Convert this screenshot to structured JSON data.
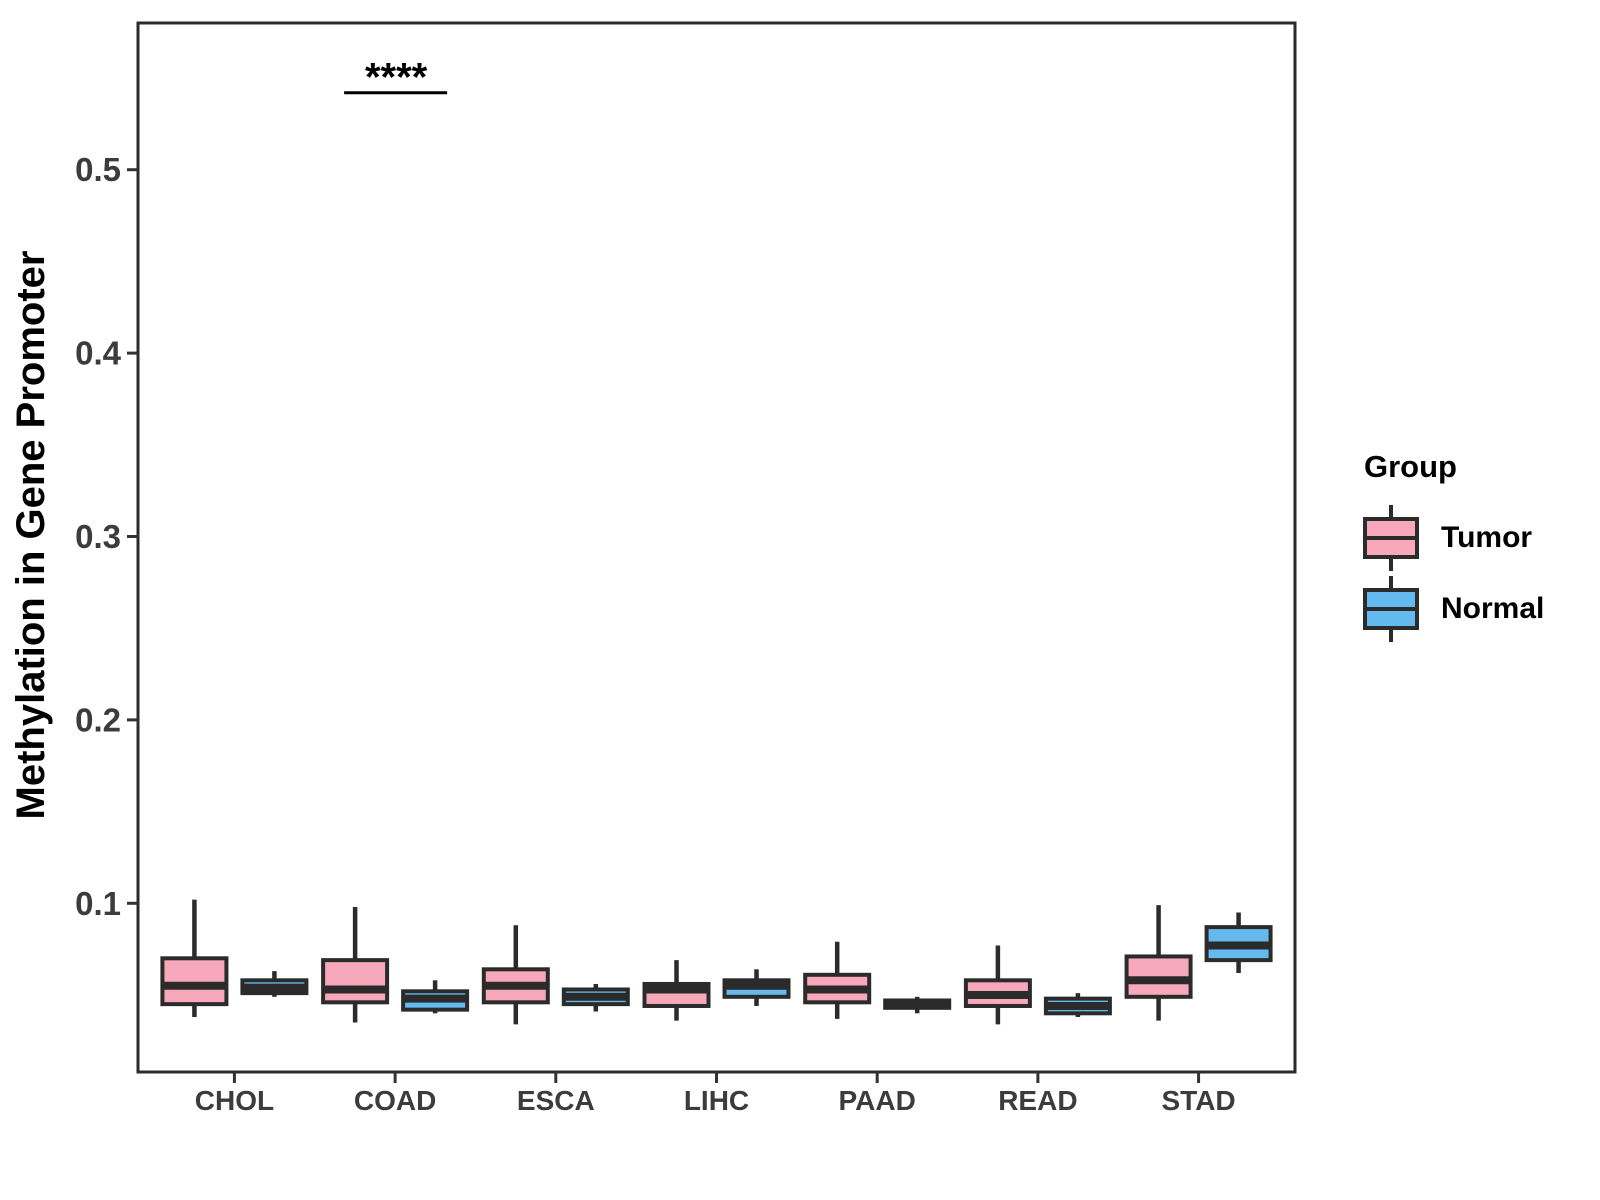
{
  "figure": {
    "background": "#FFFFFF"
  },
  "chart_data": {
    "type": "boxplot",
    "title": "",
    "xlabel": "",
    "ylabel": "Methylation in Gene Promoter",
    "categories": [
      "CHOL",
      "COAD",
      "ESCA",
      "LIHC",
      "PAAD",
      "READ",
      "STAD"
    ],
    "y_ticks": [
      0.1,
      0.2,
      0.3,
      0.4,
      0.5
    ],
    "ylim": [
      0.008,
      0.58
    ],
    "grid": false,
    "legend_position": "right",
    "stroke_color": "#2B2B2B",
    "axis_color": "#333333",
    "groups": [
      {
        "name": "Tumor",
        "fill": "#F8A8BB"
      },
      {
        "name": "Normal",
        "fill": "#64B9EE"
      }
    ],
    "series": [
      {
        "name": "Tumor",
        "boxes": [
          {
            "category": "CHOL",
            "min": 0.038,
            "q1": 0.045,
            "median": 0.055,
            "q3": 0.07,
            "max": 0.102
          },
          {
            "category": "COAD",
            "min": 0.035,
            "q1": 0.046,
            "median": 0.053,
            "q3": 0.069,
            "max": 0.098
          },
          {
            "category": "ESCA",
            "min": 0.034,
            "q1": 0.046,
            "median": 0.055,
            "q3": 0.064,
            "max": 0.088
          },
          {
            "category": "LIHC",
            "min": 0.036,
            "q1": 0.044,
            "median": 0.053,
            "q3": 0.056,
            "max": 0.069
          },
          {
            "category": "PAAD",
            "min": 0.037,
            "q1": 0.046,
            "median": 0.053,
            "q3": 0.061,
            "max": 0.079
          },
          {
            "category": "READ",
            "min": 0.034,
            "q1": 0.044,
            "median": 0.05,
            "q3": 0.058,
            "max": 0.077
          },
          {
            "category": "STAD",
            "min": 0.036,
            "q1": 0.049,
            "median": 0.058,
            "q3": 0.071,
            "max": 0.099
          }
        ]
      },
      {
        "name": "Normal",
        "boxes": [
          {
            "category": "CHOL",
            "min": 0.049,
            "q1": 0.051,
            "median": 0.054,
            "q3": 0.058,
            "max": 0.063
          },
          {
            "category": "COAD",
            "min": 0.04,
            "q1": 0.042,
            "median": 0.048,
            "q3": 0.052,
            "max": 0.058
          },
          {
            "category": "ESCA",
            "min": 0.041,
            "q1": 0.045,
            "median": 0.049,
            "q3": 0.053,
            "max": 0.056
          },
          {
            "category": "LIHC",
            "min": 0.044,
            "q1": 0.049,
            "median": 0.055,
            "q3": 0.058,
            "max": 0.064
          },
          {
            "category": "PAAD",
            "min": 0.04,
            "q1": 0.043,
            "median": 0.045,
            "q3": 0.047,
            "max": 0.049
          },
          {
            "category": "READ",
            "min": 0.038,
            "q1": 0.04,
            "median": 0.044,
            "q3": 0.048,
            "max": 0.051
          },
          {
            "category": "STAD",
            "min": 0.062,
            "q1": 0.069,
            "median": 0.077,
            "q3": 0.087,
            "max": 0.095
          }
        ]
      }
    ],
    "annotation": {
      "text": "****",
      "category": "COAD",
      "compares": [
        "Tumor",
        "Normal"
      ],
      "y_line": 0.542
    }
  },
  "legend": {
    "title": "Group",
    "items": [
      {
        "label": "Tumor",
        "fill": "#F8A8BB"
      },
      {
        "label": "Normal",
        "fill": "#64B9EE"
      }
    ]
  }
}
